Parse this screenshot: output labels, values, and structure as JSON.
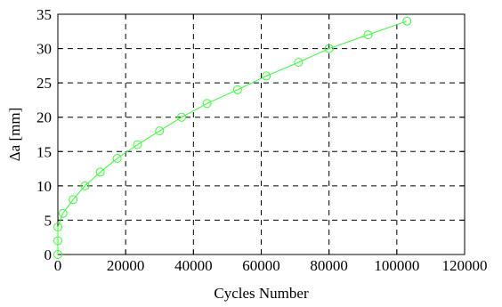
{
  "chart_data": {
    "type": "line",
    "title": "",
    "xlabel": "Cycles Number",
    "ylabel": "Δa [mm]",
    "xlim": [
      0,
      120000
    ],
    "ylim": [
      0,
      35
    ],
    "xticks": [
      0,
      20000,
      40000,
      60000,
      80000,
      100000,
      120000
    ],
    "yticks": [
      0,
      5,
      10,
      15,
      20,
      25,
      30,
      35
    ],
    "grid": true,
    "legend": "none",
    "series": [
      {
        "color": "#33ff33",
        "marker": "circle-open",
        "x": [
          0,
          0,
          0,
          1500,
          4500,
          8000,
          12500,
          17500,
          23500,
          30000,
          36500,
          44000,
          53000,
          61500,
          71000,
          80000,
          91500,
          103000
        ],
        "y": [
          0,
          2,
          4,
          6,
          8,
          10,
          12,
          14,
          16,
          18,
          20,
          22,
          24,
          26,
          28,
          30,
          32,
          34
        ]
      }
    ]
  }
}
